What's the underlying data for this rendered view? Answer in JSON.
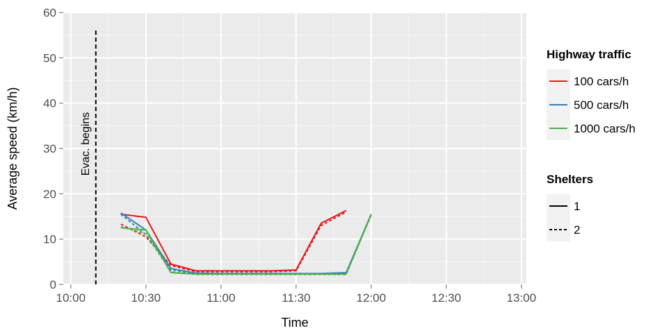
{
  "chart_data": {
    "type": "line",
    "xlabel": "Time",
    "ylabel": "Average speed (km/h)",
    "x_ticks": [
      "10:00",
      "10:30",
      "11:00",
      "11:30",
      "12:00",
      "12:30",
      "13:00"
    ],
    "y_ticks": [
      0,
      10,
      20,
      30,
      40,
      50,
      60
    ],
    "xlim": [
      "09:57",
      "13:02"
    ],
    "ylim": [
      0,
      60
    ],
    "grid": true,
    "legend_position": "right",
    "annotation": {
      "text": "Evac. begins",
      "x": "10:10"
    },
    "legend_traffic": {
      "title": "Highway traffic",
      "entries": [
        {
          "label": "100 cars/h",
          "color": "#e41a1c"
        },
        {
          "label": "500 cars/h",
          "color": "#377eb8"
        },
        {
          "label": "1000 cars/h",
          "color": "#4daf4a"
        }
      ]
    },
    "legend_shelters": {
      "title": "Shelters",
      "entries": [
        {
          "label": "1",
          "dash": "solid"
        },
        {
          "label": "2",
          "dash": "dashed"
        }
      ]
    },
    "series": [
      {
        "traffic": "100 cars/h",
        "shelters": "1",
        "color": "#e41a1c",
        "dash": "solid",
        "points": [
          [
            "10:20",
            15.5
          ],
          [
            "10:30",
            14.8
          ],
          [
            "10:40",
            4.5
          ],
          [
            "10:50",
            3.0
          ],
          [
            "11:00",
            3.0
          ],
          [
            "11:10",
            3.0
          ],
          [
            "11:20",
            3.0
          ],
          [
            "11:30",
            3.2
          ],
          [
            "11:40",
            13.5
          ],
          [
            "11:50",
            16.3
          ]
        ]
      },
      {
        "traffic": "100 cars/h",
        "shelters": "2",
        "color": "#e41a1c",
        "dash": "dashed",
        "points": [
          [
            "10:20",
            13.3
          ],
          [
            "10:30",
            10.5
          ],
          [
            "10:40",
            4.2
          ],
          [
            "10:50",
            2.8
          ],
          [
            "11:00",
            2.8
          ],
          [
            "11:10",
            2.8
          ],
          [
            "11:20",
            2.8
          ],
          [
            "11:30",
            3.0
          ],
          [
            "11:40",
            13.0
          ],
          [
            "11:50",
            16.0
          ]
        ]
      },
      {
        "traffic": "500 cars/h",
        "shelters": "1",
        "color": "#377eb8",
        "dash": "solid",
        "points": [
          [
            "10:20",
            15.8
          ],
          [
            "10:30",
            12.0
          ],
          [
            "10:40",
            3.5
          ],
          [
            "10:50",
            2.5
          ],
          [
            "11:00",
            2.4
          ],
          [
            "11:10",
            2.4
          ],
          [
            "11:20",
            2.4
          ],
          [
            "11:30",
            2.4
          ],
          [
            "11:40",
            2.4
          ],
          [
            "11:50",
            2.6
          ],
          [
            "12:00",
            15.5
          ]
        ]
      },
      {
        "traffic": "500 cars/h",
        "shelters": "2",
        "color": "#377eb8",
        "dash": "dashed",
        "points": [
          [
            "10:20",
            15.5
          ],
          [
            "10:30",
            11.0
          ],
          [
            "10:40",
            3.3
          ],
          [
            "10:50",
            2.3
          ],
          [
            "11:00",
            2.3
          ],
          [
            "11:10",
            2.3
          ],
          [
            "11:20",
            2.3
          ],
          [
            "11:30",
            2.3
          ],
          [
            "11:40",
            2.3
          ],
          [
            "11:50",
            2.4
          ],
          [
            "12:00",
            15.3
          ]
        ]
      },
      {
        "traffic": "1000 cars/h",
        "shelters": "1",
        "color": "#4daf4a",
        "dash": "solid",
        "points": [
          [
            "10:20",
            12.5
          ],
          [
            "10:30",
            12.0
          ],
          [
            "10:40",
            2.6
          ],
          [
            "10:50",
            2.3
          ],
          [
            "11:00",
            2.3
          ],
          [
            "11:10",
            2.3
          ],
          [
            "11:20",
            2.3
          ],
          [
            "11:30",
            2.3
          ],
          [
            "11:40",
            2.3
          ],
          [
            "11:50",
            2.3
          ],
          [
            "12:00",
            15.5
          ]
        ]
      },
      {
        "traffic": "1000 cars/h",
        "shelters": "2",
        "color": "#4daf4a",
        "dash": "dashed",
        "points": [
          [
            "10:20",
            12.7
          ],
          [
            "10:30",
            11.2
          ],
          [
            "10:40",
            2.8
          ],
          [
            "10:50",
            2.2
          ],
          [
            "11:00",
            2.2
          ],
          [
            "11:10",
            2.2
          ],
          [
            "11:20",
            2.2
          ],
          [
            "11:30",
            2.2
          ],
          [
            "11:40",
            2.2
          ],
          [
            "11:50",
            2.2
          ],
          [
            "12:00",
            15.4
          ]
        ]
      }
    ]
  }
}
